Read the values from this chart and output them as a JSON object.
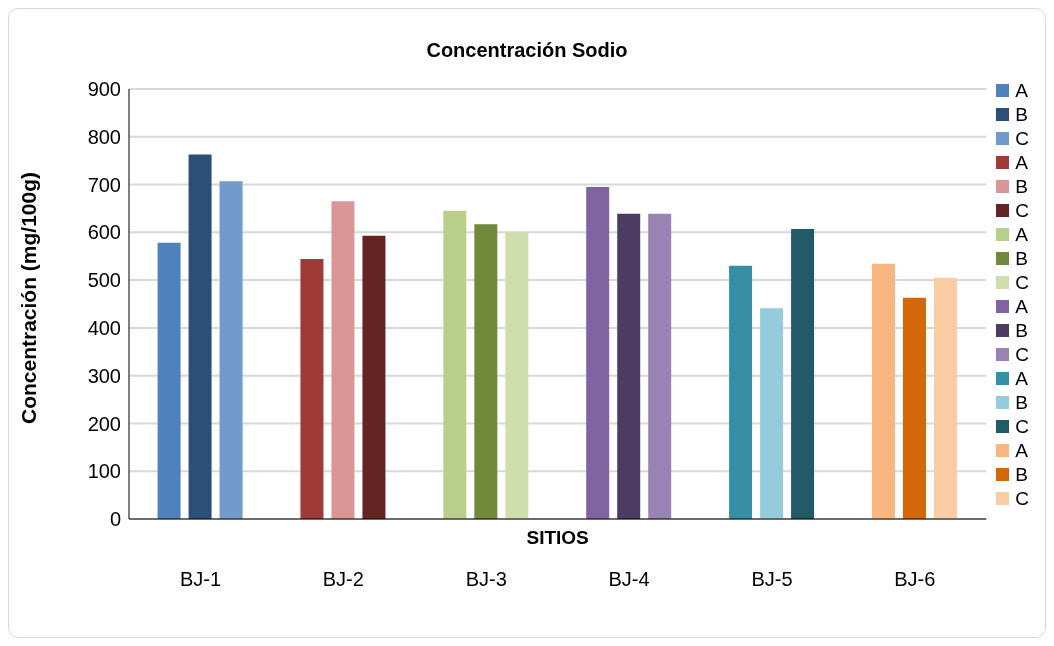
{
  "chart_data": {
    "type": "bar",
    "title": "Concentración Sodio",
    "xlabel": "SITIOS",
    "ylabel": "Concentración (mg/100g)",
    "categories": [
      "BJ-1",
      "BJ-2",
      "BJ-3",
      "BJ-4",
      "BJ-5",
      "BJ-6"
    ],
    "ylim": [
      0,
      900
    ],
    "yticks": [
      0,
      100,
      200,
      300,
      400,
      500,
      600,
      700,
      800,
      900
    ],
    "grid": "y",
    "legend": "right",
    "series": [
      {
        "name": "A",
        "color": "#4f81bd",
        "values": [
          578,
          null,
          null,
          null,
          null,
          null
        ]
      },
      {
        "name": "B",
        "color": "#2c4f78",
        "values": [
          763,
          null,
          null,
          null,
          null,
          null
        ]
      },
      {
        "name": "C",
        "color": "#729aca",
        "values": [
          707,
          null,
          null,
          null,
          null,
          null
        ]
      },
      {
        "name": "A",
        "color": "#9e3a38",
        "values": [
          null,
          544,
          null,
          null,
          null,
          null
        ]
      },
      {
        "name": "B",
        "color": "#d99694",
        "values": [
          null,
          665,
          null,
          null,
          null,
          null
        ]
      },
      {
        "name": "C",
        "color": "#632423",
        "values": [
          null,
          593,
          null,
          null,
          null,
          null
        ]
      },
      {
        "name": "A",
        "color": "#bbcf8d",
        "values": [
          null,
          null,
          645,
          null,
          null,
          null
        ]
      },
      {
        "name": "B",
        "color": "#71893a",
        "values": [
          null,
          null,
          617,
          null,
          null,
          null
        ]
      },
      {
        "name": "C",
        "color": "#cfdeac",
        "values": [
          null,
          null,
          600,
          null,
          null,
          null
        ]
      },
      {
        "name": "A",
        "color": "#8064a2",
        "values": [
          null,
          null,
          null,
          695,
          null,
          null
        ]
      },
      {
        "name": "B",
        "color": "#4c3c62",
        "values": [
          null,
          null,
          null,
          639,
          null,
          null
        ]
      },
      {
        "name": "C",
        "color": "#9983b5",
        "values": [
          null,
          null,
          null,
          639,
          null,
          null
        ]
      },
      {
        "name": "A",
        "color": "#378ea7",
        "values": [
          null,
          null,
          null,
          null,
          530,
          null
        ]
      },
      {
        "name": "B",
        "color": "#94ccdc",
        "values": [
          null,
          null,
          null,
          null,
          441,
          null
        ]
      },
      {
        "name": "C",
        "color": "#225a68",
        "values": [
          null,
          null,
          null,
          null,
          607,
          null
        ]
      },
      {
        "name": "A",
        "color": "#f8b681",
        "values": [
          null,
          null,
          null,
          null,
          null,
          534
        ]
      },
      {
        "name": "B",
        "color": "#d5670b",
        "values": [
          null,
          null,
          null,
          null,
          null,
          463
        ]
      },
      {
        "name": "C",
        "color": "#facca4",
        "values": [
          null,
          null,
          null,
          null,
          null,
          505
        ]
      }
    ]
  }
}
